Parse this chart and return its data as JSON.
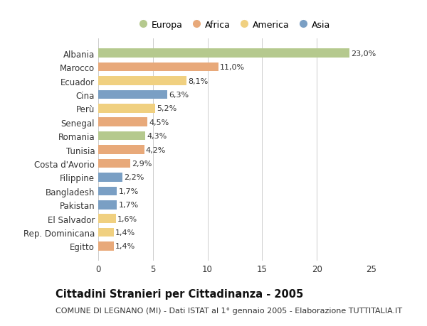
{
  "countries": [
    "Albania",
    "Marocco",
    "Ecuador",
    "Cina",
    "Perù",
    "Senegal",
    "Romania",
    "Tunisia",
    "Costa d'Avorio",
    "Filippine",
    "Bangladesh",
    "Pakistan",
    "El Salvador",
    "Rep. Dominicana",
    "Egitto"
  ],
  "values": [
    23.0,
    11.0,
    8.1,
    6.3,
    5.2,
    4.5,
    4.3,
    4.2,
    2.9,
    2.2,
    1.7,
    1.7,
    1.6,
    1.4,
    1.4
  ],
  "labels": [
    "23,0%",
    "11,0%",
    "8,1%",
    "6,3%",
    "5,2%",
    "4,5%",
    "4,3%",
    "4,2%",
    "2,9%",
    "2,2%",
    "1,7%",
    "1,7%",
    "1,6%",
    "1,4%",
    "1,4%"
  ],
  "continents": [
    "Europa",
    "Africa",
    "America",
    "Asia",
    "America",
    "Africa",
    "Europa",
    "Africa",
    "Africa",
    "Asia",
    "Asia",
    "Asia",
    "America",
    "America",
    "Africa"
  ],
  "continent_colors": {
    "Europa": "#b5c98e",
    "Africa": "#e8a97a",
    "America": "#f0d080",
    "Asia": "#7a9fc4"
  },
  "legend_order": [
    "Europa",
    "Africa",
    "America",
    "Asia"
  ],
  "title": "Cittadini Stranieri per Cittadinanza - 2005",
  "subtitle": "COMUNE DI LEGNANO (MI) - Dati ISTAT al 1° gennaio 2005 - Elaborazione TUTTITALIA.IT",
  "xlim": [
    0,
    25
  ],
  "xticks": [
    0,
    5,
    10,
    15,
    20,
    25
  ],
  "background_color": "#ffffff",
  "grid_color": "#cccccc",
  "bar_height": 0.65,
  "label_fontsize": 8.0,
  "tick_fontsize": 8.5,
  "title_fontsize": 10.5,
  "subtitle_fontsize": 8.0
}
